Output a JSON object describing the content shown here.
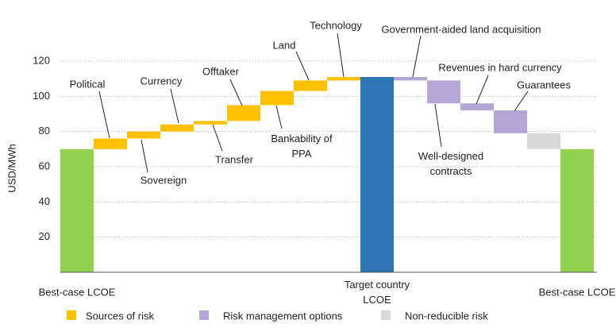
{
  "chart_data": {
    "type": "waterfall",
    "y_label": "USD/MWh",
    "categories": [
      "Best-case LCOE",
      null,
      null,
      null,
      null,
      null,
      null,
      null,
      null,
      "Target country LCOE",
      null,
      null,
      null,
      null,
      null,
      "Best-case LCOE"
    ],
    "values": [
      70,
      6,
      4,
      4,
      2,
      9,
      8,
      6,
      2,
      111,
      -2,
      -13,
      -4,
      -13,
      -9,
      70
    ],
    "measure": [
      "total",
      "relative",
      "relative",
      "relative",
      "relative",
      "relative",
      "relative",
      "relative",
      "relative",
      "total",
      "relative",
      "relative",
      "relative",
      "relative",
      "relative",
      "total"
    ],
    "colors": [
      "#92d050",
      "#ffc000",
      "#ffc000",
      "#ffc000",
      "#ffc000",
      "#ffc000",
      "#ffc000",
      "#ffc000",
      "#ffc000",
      "#2e75b6",
      "#b4a7d6",
      "#b4a7d6",
      "#b4a7d6",
      "#b4a7d6",
      "#d9d9d9",
      "#92d050"
    ],
    "step_labels": [
      null,
      "Political",
      "Sovereign",
      "Currency",
      "Transfer",
      "Offtaker",
      "Bankability of PPA",
      "Land",
      "Technology",
      null,
      "Government-aided land acquisition",
      "Well-designed contracts",
      "Revenues in hard currency",
      "Guarantees",
      null,
      null
    ],
    "ylim": [
      0,
      120
    ],
    "yticks": [
      20,
      40,
      60,
      80,
      100,
      120
    ],
    "grid": true,
    "legend": [
      {
        "name": "Sources of risk",
        "color": "#ffc000"
      },
      {
        "name": "Risk management options",
        "color": "#b4a7d6"
      },
      {
        "name": "Non-reducible risk",
        "color": "#d9d9d9"
      }
    ]
  }
}
